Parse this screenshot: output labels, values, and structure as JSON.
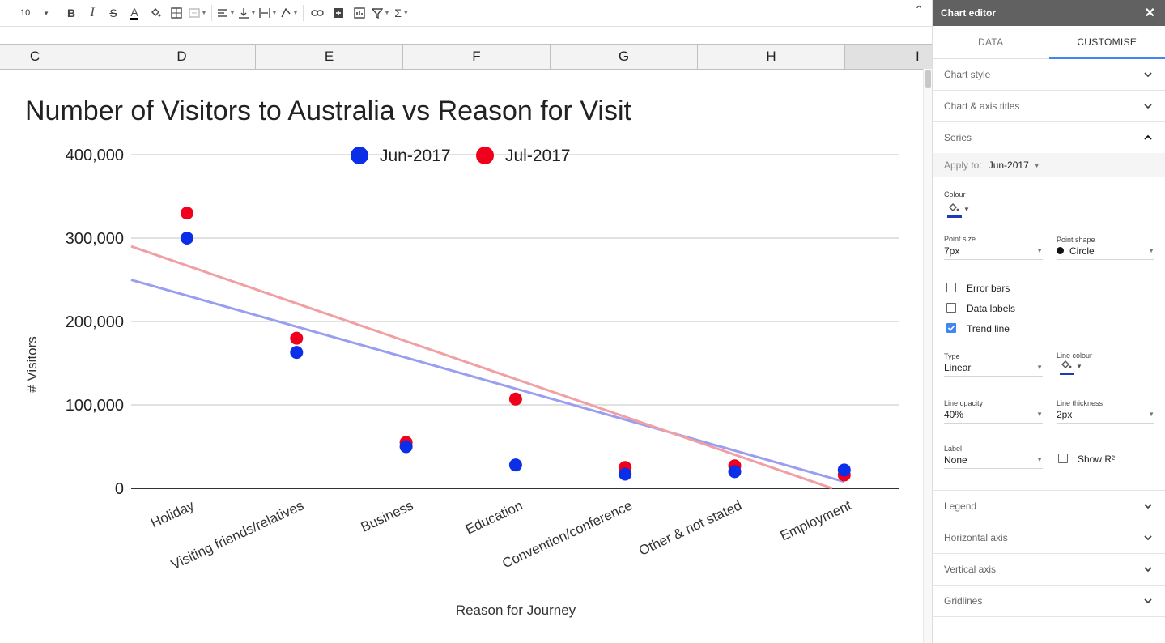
{
  "toolbar": {
    "font_size": "10",
    "buttons": [
      "bold",
      "italic",
      "strikethrough",
      "text-colour",
      "fill-colour",
      "borders",
      "merge-cells",
      "horizontal-align",
      "vertical-align",
      "text-wrapping",
      "text-rotation",
      "insert-link",
      "insert-comment",
      "insert-chart",
      "filter",
      "functions"
    ]
  },
  "columns": [
    "C",
    "D",
    "E",
    "F",
    "G",
    "H",
    "I"
  ],
  "chart_data": {
    "type": "scatter",
    "title": "Number of Visitors to Australia vs Reason for Visit",
    "xlabel": "Reason for Journey",
    "ylabel": "# Visitors",
    "categories": [
      "Holiday",
      "Visiting friends/relatives",
      "Business",
      "Education",
      "Convention/conference",
      "Other & not stated",
      "Employment"
    ],
    "yticks": [
      "0",
      "100,000",
      "200,000",
      "300,000",
      "400,000"
    ],
    "ylim": [
      0,
      400000
    ],
    "legend_position": "top",
    "grid": true,
    "series": [
      {
        "name": "Jun-2017",
        "color": "#0b2ee8",
        "values": [
          300000,
          163000,
          50000,
          28000,
          17000,
          20000,
          22000
        ],
        "trend": [
          231000,
          8000
        ]
      },
      {
        "name": "Jul-2017",
        "color": "#f0001c",
        "values": [
          330000,
          180000,
          55000,
          107000,
          25000,
          27000,
          16000
        ],
        "trend": [
          267000,
          -5000
        ]
      }
    ],
    "trend_colors": {
      "Jun-2017": "#9a9ef0",
      "Jul-2017": "#f0a0a4"
    }
  },
  "panel": {
    "title": "Chart editor",
    "tabs": [
      "DATA",
      "CUSTOMISE"
    ],
    "sections_top": [
      "Chart style",
      "Chart & axis titles"
    ],
    "series_title": "Series",
    "apply_label": "Apply to:",
    "apply_value": "Jun-2017",
    "colour_label": "Colour",
    "point_size_label": "Point size",
    "point_size_value": "7px",
    "point_shape_label": "Point shape",
    "point_shape_value": "Circle",
    "error_bars": "Error bars",
    "data_labels": "Data labels",
    "trend_line": "Trend line",
    "type_label": "Type",
    "type_value": "Linear",
    "line_colour_label": "Line colour",
    "line_opacity_label": "Line opacity",
    "line_opacity_value": "40%",
    "line_thickness_label": "Line thickness",
    "line_thickness_value": "2px",
    "label_label": "Label",
    "label_value": "None",
    "show_r2": "Show R²",
    "sections_bottom": [
      "Legend",
      "Horizontal axis",
      "Vertical axis",
      "Gridlines"
    ],
    "series_colour": "#1c3bb5"
  }
}
